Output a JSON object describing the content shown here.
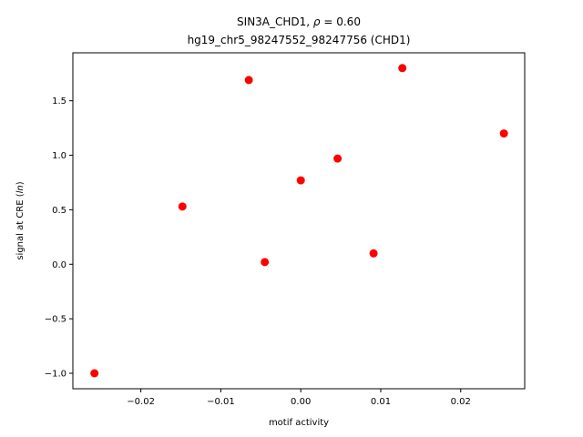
{
  "chart_data": {
    "type": "scatter",
    "title_line1": "SIN3A_CHD1, ρ = 0.60",
    "title_line2": "hg19_chr5_98247552_98247756 (CHD1)",
    "xlabel": "motif activity",
    "ylabel": "signal at CRE (ln)",
    "xlim": [
      -0.0285,
      0.028
    ],
    "ylim": [
      -1.142,
      1.94
    ],
    "xticks": [
      -0.02,
      -0.01,
      0.0,
      0.01,
      0.02
    ],
    "xtick_labels": [
      "−0.02",
      "−0.01",
      "0.00",
      "0.01",
      "0.02"
    ],
    "yticks": [
      -1.0,
      -0.5,
      0.0,
      0.5,
      1.0,
      1.5
    ],
    "ytick_labels": [
      "−1.0",
      "−0.5",
      "0.0",
      "0.5",
      "1.0",
      "1.5"
    ],
    "grid": false,
    "point_color": "#ff0000",
    "points": [
      {
        "x": -0.0258,
        "y": -1.0
      },
      {
        "x": -0.0148,
        "y": 0.53
      },
      {
        "x": -0.0065,
        "y": 1.69
      },
      {
        "x": -0.0045,
        "y": 0.02
      },
      {
        "x": 0.0,
        "y": 0.77
      },
      {
        "x": 0.0046,
        "y": 0.97
      },
      {
        "x": 0.0091,
        "y": 0.1
      },
      {
        "x": 0.0127,
        "y": 1.8
      },
      {
        "x": 0.0254,
        "y": 1.2
      }
    ]
  }
}
